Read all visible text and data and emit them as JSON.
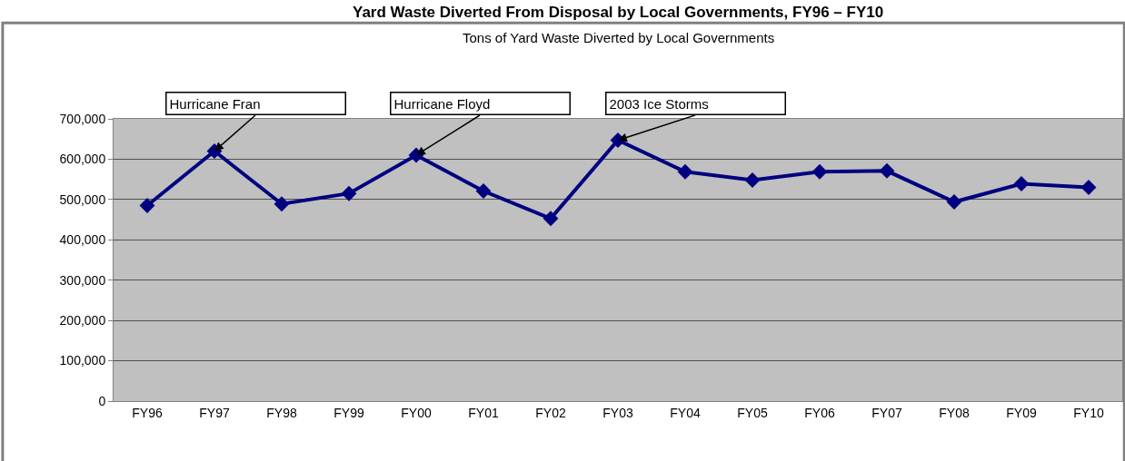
{
  "chart_data": {
    "type": "line",
    "title": "Yard Waste Diverted From Disposal by Local Governments, FY96 – FY10",
    "subtitle": "Tons of Yard Waste Diverted by Local Governments",
    "categories": [
      "FY96",
      "FY97",
      "FY98",
      "FY99",
      "FY00",
      "FY01",
      "FY02",
      "FY03",
      "FY04",
      "FY05",
      "FY06",
      "FY07",
      "FY08",
      "FY09",
      "FY10"
    ],
    "series": [
      {
        "color": "#000080",
        "values": [
          485000,
          620000,
          489000,
          515000,
          610000,
          521000,
          453000,
          647000,
          569000,
          548000,
          569000,
          571000,
          494000,
          539000,
          530000
        ]
      }
    ],
    "ylim": [
      0,
      700000
    ],
    "yticks": [
      {
        "value": 0,
        "label": "0"
      },
      {
        "value": 100000,
        "label": "100,000"
      },
      {
        "value": 200000,
        "label": "200,000"
      },
      {
        "value": 300000,
        "label": "300,000"
      },
      {
        "value": 400000,
        "label": "400,000"
      },
      {
        "value": 500000,
        "label": "500,000"
      },
      {
        "value": 600000,
        "label": "600,000"
      },
      {
        "value": 700000,
        "label": "700,000"
      }
    ],
    "grid": "y",
    "marker": "diamond",
    "line_style": "solid",
    "annotations": [
      {
        "text": "Hurricane Fran",
        "x": "FY97",
        "y": 620000
      },
      {
        "text": "Hurricane Floyd",
        "x": "FY00",
        "y": 610000
      },
      {
        "text": "2003 Ice Storms",
        "x": "FY03",
        "y": 647000
      }
    ]
  }
}
